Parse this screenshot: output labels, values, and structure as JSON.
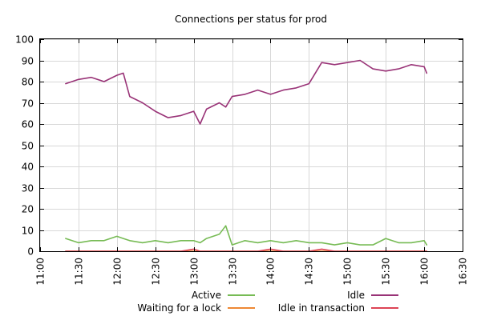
{
  "chart_data": {
    "type": "line",
    "title": "Connections per status for prod",
    "xlabel": "",
    "ylabel": "",
    "x_range": [
      "11:00",
      "16:30"
    ],
    "ylim": [
      0,
      100
    ],
    "y_ticks": [
      0,
      10,
      20,
      30,
      40,
      50,
      60,
      70,
      80,
      90,
      100
    ],
    "x_ticks": [
      "11:00",
      "11:30",
      "12:00",
      "12:30",
      "13:00",
      "13:30",
      "14:00",
      "14:30",
      "15:00",
      "15:30",
      "16:00",
      "16:30"
    ],
    "grid": true,
    "legend_position": "bottom-center",
    "x": [
      "11:20",
      "11:30",
      "11:40",
      "11:50",
      "12:00",
      "12:05",
      "12:10",
      "12:20",
      "12:30",
      "12:40",
      "12:50",
      "13:00",
      "13:05",
      "13:10",
      "13:20",
      "13:25",
      "13:30",
      "13:40",
      "13:50",
      "14:00",
      "14:10",
      "14:20",
      "14:30",
      "14:40",
      "14:50",
      "15:00",
      "15:10",
      "15:20",
      "15:30",
      "15:40",
      "15:50",
      "16:00",
      "16:02"
    ],
    "series": [
      {
        "name": "Active",
        "color": "#77bb55",
        "values": [
          6,
          4,
          5,
          5,
          7,
          6,
          5,
          4,
          5,
          4,
          5,
          5,
          4,
          6,
          8,
          12,
          3,
          5,
          4,
          5,
          4,
          5,
          4,
          4,
          3,
          4,
          3,
          3,
          6,
          4,
          4,
          5,
          3
        ]
      },
      {
        "name": "Idle",
        "color": "#993377",
        "values": [
          79,
          81,
          82,
          80,
          83,
          84,
          73,
          70,
          66,
          63,
          64,
          66,
          60,
          67,
          70,
          68,
          73,
          74,
          76,
          74,
          76,
          77,
          79,
          89,
          88,
          89,
          90,
          86,
          85,
          86,
          88,
          87,
          84
        ]
      },
      {
        "name": "Waiting for a lock",
        "color": "#ee8833",
        "values": [
          0,
          0,
          0,
          0,
          0,
          0,
          0,
          0,
          0,
          0,
          0,
          0,
          0,
          0,
          0,
          0,
          0,
          0,
          0,
          0,
          0,
          0,
          0,
          0,
          0,
          0,
          0,
          0,
          0,
          0,
          0,
          0,
          0
        ]
      },
      {
        "name": "Idle in transaction",
        "color": "#dd4455",
        "values": [
          0,
          0,
          0,
          0,
          0,
          0,
          0,
          0,
          0,
          0,
          0,
          1,
          0,
          0,
          0,
          0,
          0,
          0,
          0,
          1,
          0,
          0,
          0,
          1,
          0,
          0,
          0,
          0,
          0,
          0,
          0,
          0,
          0
        ]
      }
    ]
  }
}
